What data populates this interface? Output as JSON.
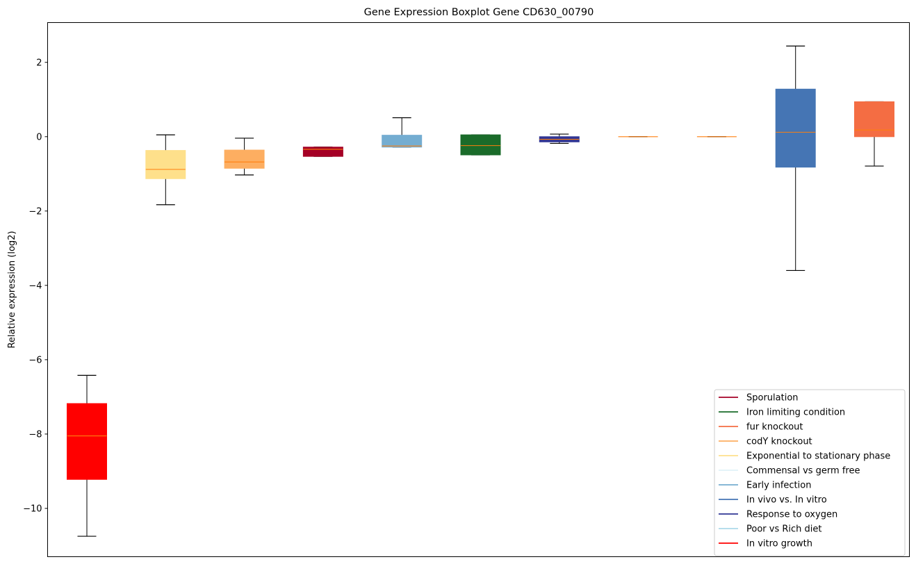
{
  "chart_data": {
    "type": "boxplot",
    "title": "Gene Expression Boxplot Gene CD630_00790",
    "xlabel": "",
    "ylabel": "Relative expression (log2)",
    "ylim": [
      -11.3,
      3.07
    ],
    "yticks": [
      2,
      0,
      -2,
      -4,
      -6,
      -8,
      -10
    ],
    "ytick_labels": [
      "2",
      "0",
      "−2",
      "−4",
      "−6",
      "−8",
      "−10"
    ],
    "grid": false,
    "legend_position": "lower-right",
    "median_color": "#ff7f0e",
    "boxes": [
      {
        "series": "In vitro growth",
        "color": "#ff0000",
        "whisker_low": -10.75,
        "q1": -9.22,
        "median": -8.05,
        "q3": -7.18,
        "whisker_high": -6.42
      },
      {
        "series": "Exponential to stationary phase",
        "color": "#fee08b",
        "whisker_low": -1.83,
        "q1": -1.13,
        "median": -0.88,
        "q3": -0.37,
        "whisker_high": 0.05
      },
      {
        "series": "codY knockout",
        "color": "#fdae61",
        "whisker_low": -1.03,
        "q1": -0.85,
        "median": -0.68,
        "q3": -0.36,
        "whisker_high": -0.04
      },
      {
        "series": "Sporulation",
        "color": "#a50026",
        "whisker_low": -0.53,
        "q1": -0.53,
        "median": -0.34,
        "q3": -0.28,
        "whisker_high": -0.28
      },
      {
        "series": "Early infection",
        "color": "#74add1",
        "whisker_low": -0.28,
        "q1": -0.28,
        "median": -0.25,
        "q3": 0.04,
        "whisker_high": 0.51
      },
      {
        "series": "Iron limiting condition",
        "color": "#1a6b2a",
        "whisker_low": -0.49,
        "q1": -0.49,
        "median": -0.24,
        "q3": 0.05,
        "whisker_high": 0.05
      },
      {
        "series": "Response to oxygen",
        "color": "#313695",
        "whisker_low": -0.18,
        "q1": -0.14,
        "median": -0.07,
        "q3": 0.0,
        "whisker_high": 0.07
      },
      {
        "series": "Commensal vs germ free",
        "color": "#e0f3f8",
        "whisker_low": 0.0,
        "q1": 0.0,
        "median": 0.0,
        "q3": 0.0,
        "whisker_high": 0.0
      },
      {
        "series": "Poor vs Rich diet",
        "color": "#abd9e9",
        "whisker_low": 0.0,
        "q1": 0.0,
        "median": 0.0,
        "q3": 0.0,
        "whisker_high": 0.0
      },
      {
        "series": "In vivo vs. In vitro",
        "color": "#4575b4",
        "whisker_low": -3.6,
        "q1": -0.82,
        "median": 0.12,
        "q3": 1.28,
        "whisker_high": 2.44
      },
      {
        "series": "fur knockout",
        "color": "#f46d43",
        "whisker_low": -0.79,
        "q1": 0.0,
        "median": 0.18,
        "q3": 0.94,
        "whisker_high": 0.94
      }
    ],
    "legend": [
      {
        "label": "Sporulation",
        "color": "#a50026"
      },
      {
        "label": "Iron limiting condition",
        "color": "#1a6b2a"
      },
      {
        "label": "fur knockout",
        "color": "#f46d43"
      },
      {
        "label": "codY knockout",
        "color": "#fdae61"
      },
      {
        "label": "Exponential to stationary phase",
        "color": "#fee08b"
      },
      {
        "label": "Commensal vs germ free",
        "color": "#e0f3f8"
      },
      {
        "label": "Early infection",
        "color": "#74add1"
      },
      {
        "label": "In vivo vs. In vitro",
        "color": "#4575b4"
      },
      {
        "label": "Response to oxygen",
        "color": "#313695"
      },
      {
        "label": "Poor vs Rich diet",
        "color": "#abd9e9"
      },
      {
        "label": "In vitro growth",
        "color": "#ff0000"
      }
    ]
  }
}
